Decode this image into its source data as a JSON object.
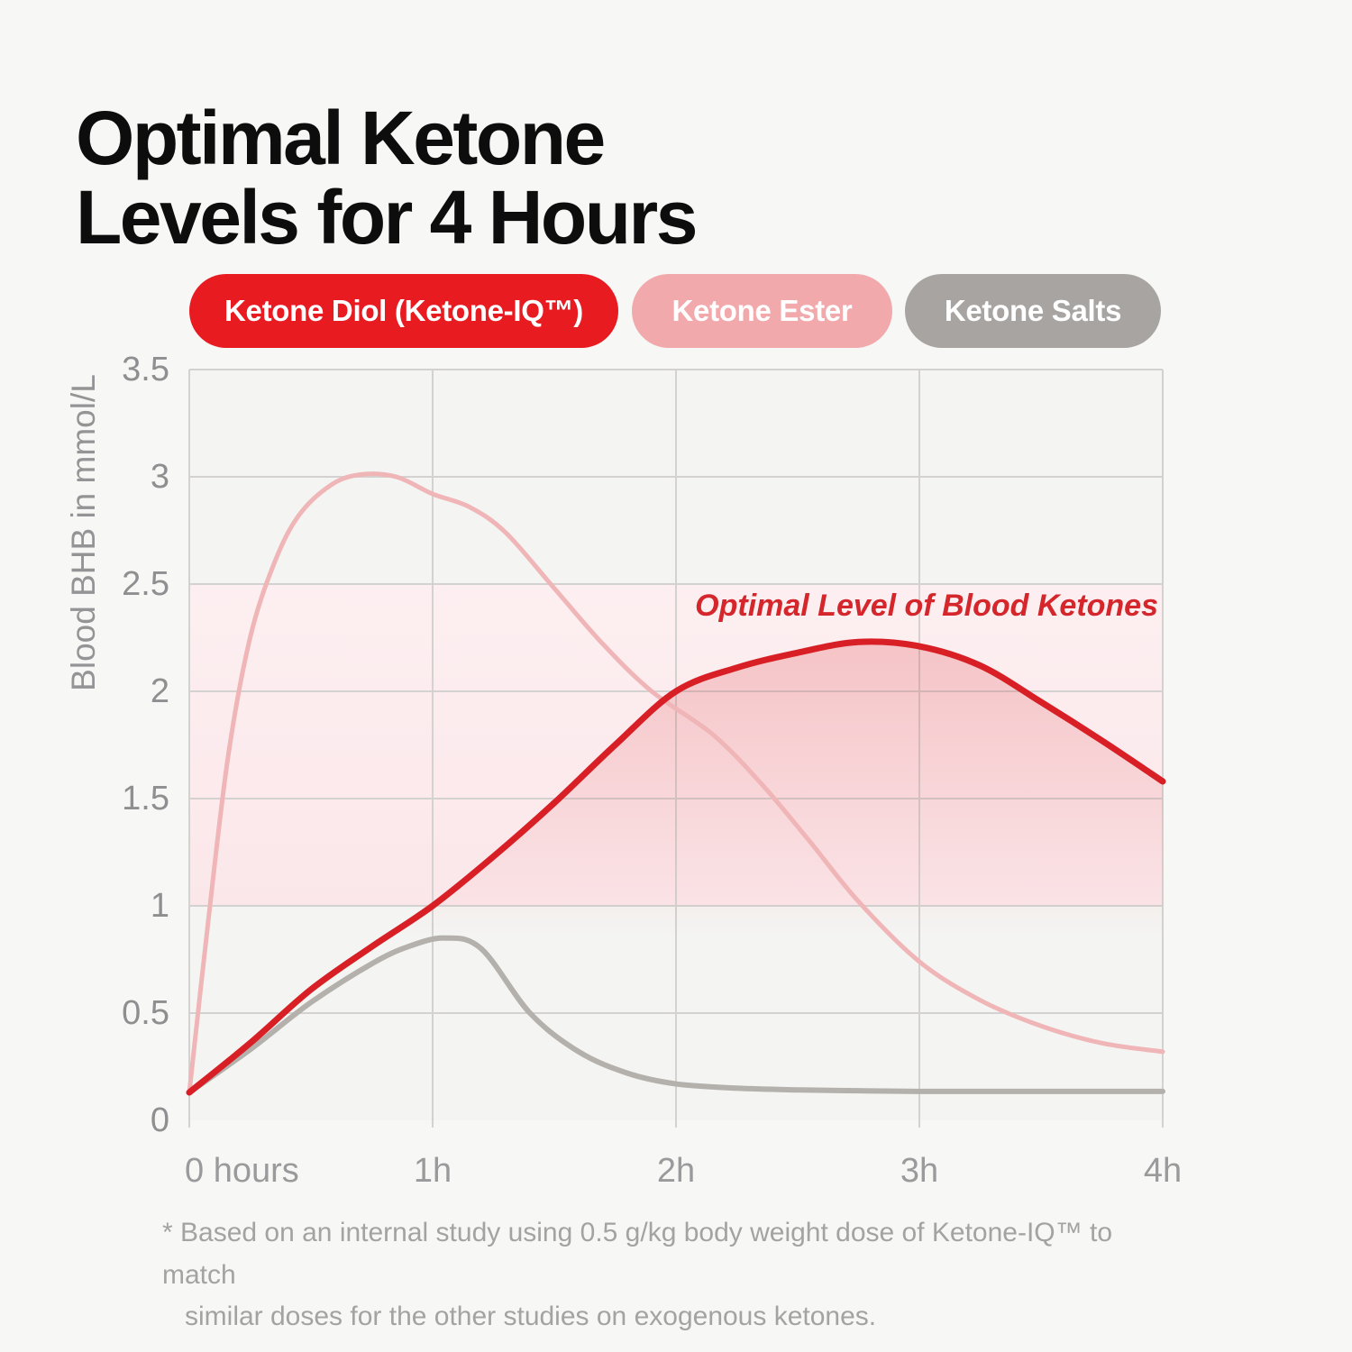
{
  "page": {
    "background": "#f7f7f5"
  },
  "title": {
    "line1": "Optimal Ketone",
    "line2": "Levels for 4 Hours"
  },
  "legend": [
    {
      "label": "Ketone Diol (Ketone-IQ™)",
      "color": "#e81b21",
      "text_color": "#ffffff"
    },
    {
      "label": "Ketone Ester",
      "color": "#f2a9ac",
      "text_color": "#ffffff"
    },
    {
      "label": "Ketone Salts",
      "color": "#a8a4a1",
      "text_color": "#ffffff"
    }
  ],
  "footnote": {
    "line1": "* Based on an internal study using 0.5 g/kg body weight dose of Ketone-IQ™ to match",
    "line2": "similar doses for the other studies on exogenous ketones."
  },
  "chart_data": {
    "type": "line",
    "title": "Optimal Ketone Levels for 4 Hours",
    "xlabel": "hours",
    "ylabel": "Blood BHB in mmol/L",
    "xlim": [
      0,
      4
    ],
    "ylim": [
      0,
      3.5
    ],
    "grid": true,
    "grid_color": "#d3d2d1",
    "plot_bg": "#f4f4f2",
    "annotation": "Optimal Level of Blood Ketones",
    "annotation_color": "#d4262b",
    "optimal_band": {
      "from": 1.0,
      "to": 2.5,
      "color_top": "#fdeff1",
      "color_bottom": "#fbe7ea"
    },
    "x_ticks": [
      {
        "label": "0 hours",
        "t": 0
      },
      {
        "label": "1h",
        "t": 1
      },
      {
        "label": "2h",
        "t": 2
      },
      {
        "label": "3h",
        "t": 3
      },
      {
        "label": "4h",
        "t": 4
      }
    ],
    "y_ticks": [
      {
        "label": "3.5",
        "v": 3.5
      },
      {
        "label": "3",
        "v": 3
      },
      {
        "label": "2.5",
        "v": 2.5
      },
      {
        "label": "2",
        "v": 2
      },
      {
        "label": "1.5",
        "v": 1.5
      },
      {
        "label": "1",
        "v": 1
      },
      {
        "label": "0.5",
        "v": 0.5
      },
      {
        "label": "0",
        "v": 0
      }
    ],
    "series": [
      {
        "name": "Ketone Diol (Ketone-IQ)",
        "color": "#d71f25",
        "width": 7,
        "area_fill": true,
        "area_color": "rgba(214,30,36,0.20)",
        "points": [
          [
            0,
            0.13
          ],
          [
            0.25,
            0.36
          ],
          [
            0.5,
            0.61
          ],
          [
            0.75,
            0.81
          ],
          [
            1,
            1.0
          ],
          [
            1.25,
            1.23
          ],
          [
            1.5,
            1.48
          ],
          [
            1.75,
            1.75
          ],
          [
            2,
            2.0
          ],
          [
            2.25,
            2.11
          ],
          [
            2.5,
            2.18
          ],
          [
            2.75,
            2.23
          ],
          [
            3,
            2.21
          ],
          [
            3.25,
            2.12
          ],
          [
            3.5,
            1.95
          ],
          [
            3.75,
            1.77
          ],
          [
            4,
            1.58
          ]
        ]
      },
      {
        "name": "Ketone Ester",
        "color": "#efb5b7",
        "width": 5,
        "points": [
          [
            0,
            0.13
          ],
          [
            0.08,
            0.95
          ],
          [
            0.16,
            1.7
          ],
          [
            0.25,
            2.25
          ],
          [
            0.35,
            2.6
          ],
          [
            0.45,
            2.82
          ],
          [
            0.58,
            2.96
          ],
          [
            0.7,
            3.01
          ],
          [
            0.85,
            3.0
          ],
          [
            1.0,
            2.92
          ],
          [
            1.15,
            2.86
          ],
          [
            1.3,
            2.74
          ],
          [
            1.5,
            2.48
          ],
          [
            1.7,
            2.22
          ],
          [
            1.9,
            2.0
          ],
          [
            2.15,
            1.8
          ],
          [
            2.35,
            1.57
          ],
          [
            2.55,
            1.3
          ],
          [
            2.75,
            1.02
          ],
          [
            3.0,
            0.74
          ],
          [
            3.25,
            0.56
          ],
          [
            3.5,
            0.44
          ],
          [
            3.75,
            0.36
          ],
          [
            4,
            0.32
          ]
        ]
      },
      {
        "name": "Ketone Salts",
        "color": "#b4b1ad",
        "width": 6,
        "points": [
          [
            0,
            0.13
          ],
          [
            0.25,
            0.33
          ],
          [
            0.5,
            0.55
          ],
          [
            0.75,
            0.73
          ],
          [
            0.9,
            0.81
          ],
          [
            1.05,
            0.85
          ],
          [
            1.2,
            0.8
          ],
          [
            1.4,
            0.5
          ],
          [
            1.6,
            0.32
          ],
          [
            1.8,
            0.22
          ],
          [
            2.0,
            0.17
          ],
          [
            2.25,
            0.15
          ],
          [
            2.5,
            0.142
          ],
          [
            2.75,
            0.138
          ],
          [
            3.0,
            0.135
          ],
          [
            3.5,
            0.135
          ],
          [
            4,
            0.135
          ]
        ]
      }
    ]
  }
}
